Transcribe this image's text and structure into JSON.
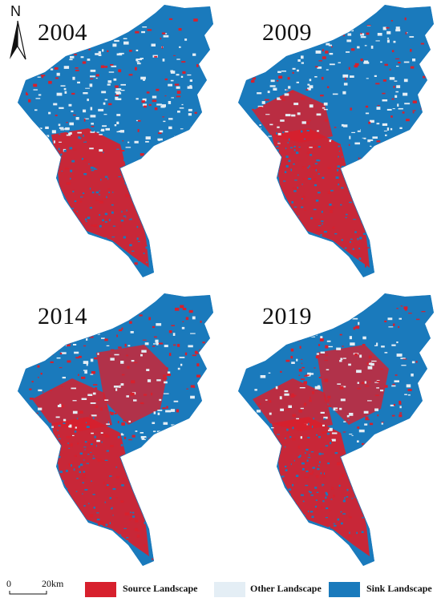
{
  "north_arrow": {
    "label": "N",
    "icon": "north-arrow-icon"
  },
  "panels": [
    {
      "year": "2004"
    },
    {
      "year": "2009"
    },
    {
      "year": "2014"
    },
    {
      "year": "2019"
    }
  ],
  "scale_bar": {
    "start": "0",
    "end": "20km"
  },
  "legend": {
    "items": [
      {
        "label": "Source Landscape",
        "color": "#d7202d"
      },
      {
        "label": "Other Landscape",
        "color": "#e4eef5"
      },
      {
        "label": "Sink Landscape",
        "color": "#1a7abc"
      }
    ]
  },
  "colors": {
    "source": "#d7202d",
    "other": "#e4eef5",
    "sink": "#1a7abc"
  },
  "source_share_by_panel": [
    0.35,
    0.45,
    0.58,
    0.56
  ]
}
